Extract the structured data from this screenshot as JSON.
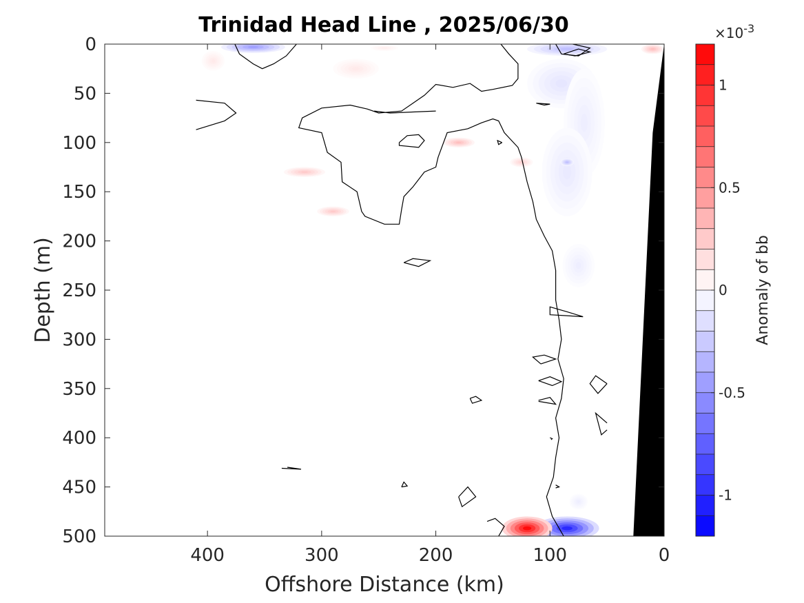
{
  "chart_data": {
    "type": "heatmap",
    "title": "Trinidad Head Line , 2025/06/30",
    "xlabel": "Offshore Distance (km)",
    "ylabel": "Depth (m)",
    "xlim": [
      490,
      0
    ],
    "ylim": [
      0,
      500
    ],
    "x_ticks": [
      {
        "value": 400,
        "label": "400"
      },
      {
        "value": 300,
        "label": "300"
      },
      {
        "value": 200,
        "label": "200"
      },
      {
        "value": 100,
        "label": "100"
      },
      {
        "value": 0,
        "label": "0"
      }
    ],
    "y_ticks": [
      {
        "value": 0,
        "label": "0"
      },
      {
        "value": 50,
        "label": "50"
      },
      {
        "value": 100,
        "label": "100"
      },
      {
        "value": 150,
        "label": "150"
      },
      {
        "value": 200,
        "label": "200"
      },
      {
        "value": 250,
        "label": "250"
      },
      {
        "value": 300,
        "label": "300"
      },
      {
        "value": 350,
        "label": "350"
      },
      {
        "value": 400,
        "label": "400"
      },
      {
        "value": 450,
        "label": "450"
      },
      {
        "value": 500,
        "label": "500"
      }
    ],
    "colorbar": {
      "label": "Anomaly of bb",
      "exponent_text": "×10",
      "exponent_power": "-3",
      "range": [
        -1.2,
        1.2
      ],
      "levels": 24,
      "ticks": [
        {
          "value": 1,
          "label": "1"
        },
        {
          "value": 0.5,
          "label": "0.5"
        },
        {
          "value": 0,
          "label": "0"
        },
        {
          "value": -0.5,
          "label": "-0.5"
        },
        {
          "value": -1,
          "label": "-1"
        }
      ],
      "colormap": [
        "#0000ff",
        "#ffffff",
        "#ff0000"
      ]
    },
    "anomaly_blobs": [
      {
        "x": 360,
        "y": 3,
        "rx": 28,
        "ry": 6,
        "value": -0.45
      },
      {
        "x": 85,
        "y": 5,
        "rx": 35,
        "ry": 7,
        "value": -0.3
      },
      {
        "x": 90,
        "y": 40,
        "rx": 30,
        "ry": 25,
        "value": -0.12
      },
      {
        "x": 70,
        "y": 80,
        "rx": 18,
        "ry": 55,
        "value": -0.08
      },
      {
        "x": 85,
        "y": 130,
        "rx": 22,
        "ry": 45,
        "value": -0.1
      },
      {
        "x": 85,
        "y": 120,
        "rx": 6,
        "ry": 4,
        "value": -0.3
      },
      {
        "x": 75,
        "y": 225,
        "rx": 14,
        "ry": 22,
        "value": -0.08
      },
      {
        "x": 75,
        "y": 465,
        "rx": 8,
        "ry": 8,
        "value": -0.08
      },
      {
        "x": 85,
        "y": 492,
        "rx": 28,
        "ry": 12,
        "value": -1.0
      },
      {
        "x": 120,
        "y": 492,
        "rx": 22,
        "ry": 12,
        "value": 1.15
      },
      {
        "x": 10,
        "y": 5,
        "rx": 10,
        "ry": 5,
        "value": 0.3
      },
      {
        "x": 395,
        "y": 17,
        "rx": 10,
        "ry": 10,
        "value": 0.1
      },
      {
        "x": 270,
        "y": 25,
        "rx": 20,
        "ry": 10,
        "value": 0.1
      },
      {
        "x": 245,
        "y": 4,
        "rx": 12,
        "ry": 3,
        "value": 0.08
      },
      {
        "x": 180,
        "y": 100,
        "rx": 14,
        "ry": 5,
        "value": 0.3
      },
      {
        "x": 315,
        "y": 130,
        "rx": 18,
        "ry": 5,
        "value": 0.25
      },
      {
        "x": 290,
        "y": 170,
        "rx": 14,
        "ry": 5,
        "value": 0.25
      },
      {
        "x": 125,
        "y": 120,
        "rx": 10,
        "ry": 5,
        "value": 0.2
      }
    ],
    "zero_contours": [
      [
        [
          376,
          0
        ],
        [
          372,
          10
        ],
        [
          360,
          20
        ],
        [
          352,
          25
        ],
        [
          342,
          20
        ],
        [
          331,
          12
        ],
        [
          322,
          0
        ]
      ],
      [
        [
          143,
          0
        ],
        [
          136,
          10
        ],
        [
          128,
          20
        ],
        [
          128,
          35
        ],
        [
          133,
          42
        ],
        [
          150,
          46
        ],
        [
          160,
          48
        ],
        [
          170,
          40
        ],
        [
          185,
          44
        ],
        [
          200,
          41
        ],
        [
          210,
          52
        ],
        [
          220,
          60
        ],
        [
          230,
          68
        ],
        [
          250,
          70
        ],
        [
          260,
          66
        ],
        [
          275,
          62
        ],
        [
          300,
          65
        ],
        [
          317,
          75
        ],
        [
          320,
          85
        ],
        [
          300,
          90
        ],
        [
          295,
          110
        ],
        [
          283,
          120
        ],
        [
          282,
          140
        ],
        [
          269,
          150
        ],
        [
          265,
          170
        ],
        [
          262,
          175
        ],
        [
          245,
          183
        ],
        [
          232,
          183
        ],
        [
          230,
          168
        ],
        [
          228,
          155
        ],
        [
          220,
          145
        ],
        [
          210,
          130
        ],
        [
          200,
          125
        ],
        [
          198,
          115
        ],
        [
          190,
          90
        ],
        [
          172,
          86
        ],
        [
          160,
          80
        ],
        [
          150,
          76
        ],
        [
          145,
          78
        ],
        [
          140,
          90
        ],
        [
          128,
          105
        ],
        [
          125,
          115
        ],
        [
          120,
          140
        ],
        [
          115,
          160
        ],
        [
          112,
          178
        ],
        [
          105,
          195
        ],
        [
          98,
          210
        ],
        [
          95,
          230
        ],
        [
          95,
          260
        ],
        [
          92,
          280
        ],
        [
          90,
          300
        ],
        [
          93,
          320
        ],
        [
          88,
          340
        ],
        [
          90,
          360
        ],
        [
          95,
          380
        ],
        [
          92,
          400
        ],
        [
          95,
          420
        ],
        [
          97,
          440
        ],
        [
          103,
          460
        ],
        [
          98,
          480
        ],
        [
          88,
          500
        ]
      ],
      [
        [
          254,
          68
        ],
        [
          240,
          70
        ],
        [
          220,
          69
        ],
        [
          200,
          68
        ]
      ],
      [
        [
          410,
          57
        ],
        [
          385,
          60
        ],
        [
          375,
          70
        ],
        [
          385,
          78
        ],
        [
          410,
          87
        ]
      ],
      [
        [
          232,
          100
        ],
        [
          225,
          93
        ],
        [
          215,
          92
        ],
        [
          210,
          98
        ],
        [
          215,
          105
        ],
        [
          232,
          103
        ],
        [
          232,
          100
        ]
      ],
      [
        [
          142,
          100
        ],
        [
          145,
          102
        ],
        [
          146,
          98
        ],
        [
          142,
          100
        ]
      ],
      [
        [
          228,
          222
        ],
        [
          220,
          218
        ],
        [
          205,
          220
        ],
        [
          215,
          226
        ],
        [
          228,
          222
        ]
      ],
      [
        [
          112,
          60
        ],
        [
          100,
          61
        ],
        [
          105,
          62
        ],
        [
          112,
          60
        ]
      ],
      [
        [
          71,
          277
        ],
        [
          85,
          272
        ],
        [
          100,
          267
        ],
        [
          100,
          275
        ],
        [
          85,
          276
        ],
        [
          71,
          277
        ]
      ],
      [
        [
          108,
          325
        ],
        [
          95,
          320
        ],
        [
          105,
          316
        ],
        [
          115,
          318
        ],
        [
          108,
          325
        ]
      ],
      [
        [
          110,
          342
        ],
        [
          100,
          338
        ],
        [
          90,
          343
        ],
        [
          98,
          347
        ],
        [
          110,
          342
        ]
      ],
      [
        [
          50,
          345
        ],
        [
          60,
          337
        ],
        [
          65,
          345
        ],
        [
          58,
          355
        ],
        [
          50,
          345
        ]
      ],
      [
        [
          110,
          362
        ],
        [
          100,
          359
        ],
        [
          95,
          366
        ],
        [
          110,
          363
        ]
      ],
      [
        [
          50,
          385
        ],
        [
          60,
          375
        ],
        [
          55,
          397
        ],
        [
          50,
          392
        ]
      ],
      [
        [
          330,
          430
        ],
        [
          318,
          432
        ],
        [
          335,
          431
        ]
      ],
      [
        [
          230,
          450
        ],
        [
          228,
          445
        ],
        [
          225,
          449
        ],
        [
          230,
          450
        ]
      ],
      [
        [
          180,
          460
        ],
        [
          172,
          450
        ],
        [
          165,
          460
        ],
        [
          177,
          470
        ],
        [
          180,
          460
        ]
      ],
      [
        [
          155,
          485
        ],
        [
          148,
          482
        ],
        [
          140,
          490
        ],
        [
          145,
          500
        ]
      ],
      [
        [
          170,
          360
        ],
        [
          165,
          358
        ],
        [
          160,
          362
        ],
        [
          168,
          365
        ],
        [
          170,
          360
        ]
      ],
      [
        [
          100,
          400
        ],
        [
          98,
          401
        ],
        [
          99,
          402
        ]
      ],
      [
        [
          95,
          448
        ],
        [
          92,
          450
        ],
        [
          95,
          451
        ]
      ],
      [
        [
          95,
          0
        ],
        [
          90,
          10
        ],
        [
          75,
          12
        ],
        [
          65,
          4
        ],
        [
          80,
          0
        ]
      ],
      [
        [
          88,
          10
        ],
        [
          75,
          5
        ],
        [
          65,
          8
        ],
        [
          78,
          12
        ],
        [
          88,
          10
        ]
      ]
    ],
    "shelf_polygon": [
      [
        0,
        0
      ],
      [
        0,
        500
      ],
      [
        27,
        500
      ],
      [
        10,
        90
      ],
      [
        0,
        0
      ]
    ]
  }
}
